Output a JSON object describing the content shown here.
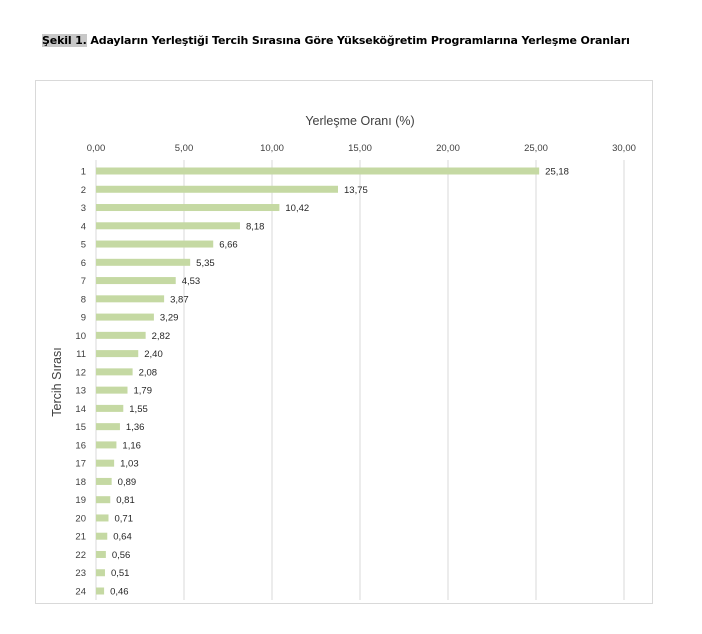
{
  "caption": {
    "label": "Şekil 1.",
    "text": " Adayların Yerleştiği Tercih Sırasına Göre Yükseköğretim Programlarına Yerleşme Oranları"
  },
  "chart_data": {
    "type": "bar",
    "orientation": "horizontal",
    "xlabel": "Yerleşme Oranı (%)",
    "ylabel": "Tercih Sırası",
    "xlim": [
      0,
      30
    ],
    "xticks": [
      "0,00",
      "5,00",
      "10,00",
      "15,00",
      "20,00",
      "25,00",
      "30,00"
    ],
    "x_axis_position": "top",
    "grid": "vertical",
    "legend": "none",
    "bar_color": "#c5d9a3",
    "categories": [
      "1",
      "2",
      "3",
      "4",
      "5",
      "6",
      "7",
      "8",
      "9",
      "10",
      "11",
      "12",
      "13",
      "14",
      "15",
      "16",
      "17",
      "18",
      "19",
      "20",
      "21",
      "22",
      "23",
      "24"
    ],
    "values": [
      25.18,
      13.75,
      10.42,
      8.18,
      6.66,
      5.35,
      4.53,
      3.87,
      3.29,
      2.82,
      2.4,
      2.08,
      1.79,
      1.55,
      1.36,
      1.16,
      1.03,
      0.89,
      0.81,
      0.71,
      0.64,
      0.56,
      0.51,
      0.46
    ],
    "data_labels": [
      "25,18",
      "13,75",
      "10,42",
      "8,18",
      "6,66",
      "5,35",
      "4,53",
      "3,87",
      "3,29",
      "2,82",
      "2,40",
      "2,08",
      "1,79",
      "1,55",
      "1,36",
      "1,16",
      "1,03",
      "0,89",
      "0,81",
      "0,71",
      "0,64",
      "0,56",
      "0,51",
      "0,46"
    ]
  }
}
